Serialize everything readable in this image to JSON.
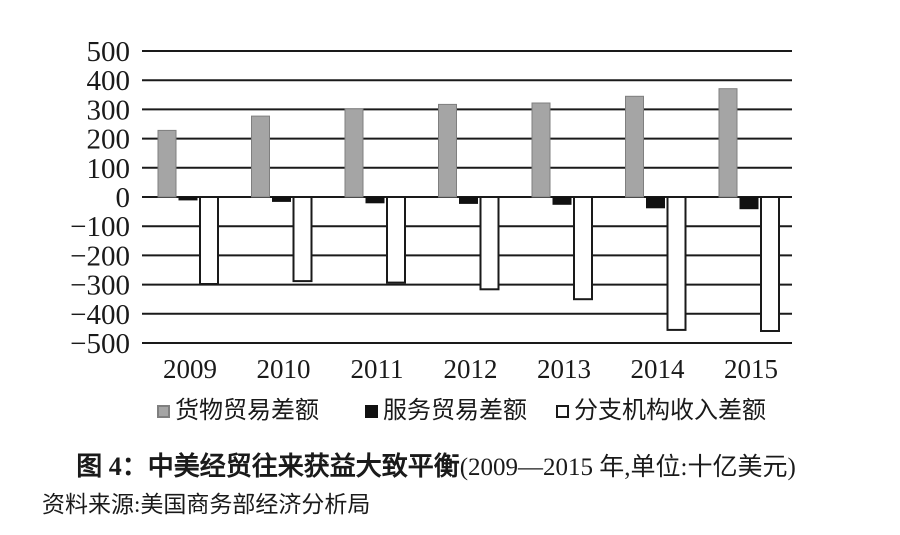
{
  "figure": {
    "caption_bold": "图 4：中美经贸往来获益大致平衡",
    "caption_detail": "(2009—2015 年,单位:十亿美元)",
    "source": "资料来源:美国商务部经济分析局"
  },
  "chart_data": {
    "type": "bar",
    "title": "图 4：中美经贸往来获益大致平衡(2009—2015 年,单位:十亿美元)",
    "source": "资料来源:美国商务部经济分析局",
    "unit": "十亿美元",
    "categories": [
      "2009",
      "2010",
      "2011",
      "2012",
      "2013",
      "2014",
      "2015"
    ],
    "series": [
      {
        "id": "goods",
        "name": "货物贸易差额",
        "color": "#a5a5a5",
        "border": "#7f7f7f",
        "values": [
          228,
          277,
          302,
          317,
          322,
          345,
          371
        ]
      },
      {
        "id": "services",
        "name": "服务贸易差额",
        "color": "#111111",
        "border": "#111111",
        "values": [
          -10,
          -15,
          -20,
          -22,
          -25,
          -37,
          -40
        ]
      },
      {
        "id": "branch",
        "name": "分支机构收入差额",
        "color": "#ffffff",
        "border": "#1a1a1a",
        "values": [
          -298,
          -288,
          -293,
          -316,
          -350,
          -455,
          -459
        ]
      }
    ],
    "ylim": [
      -500,
      500
    ],
    "ytick_step": 100,
    "y_ticks": [
      "500",
      "400",
      "300",
      "200",
      "100",
      "0",
      "−100",
      "−200",
      "−300",
      "−400",
      "−500"
    ],
    "grid": true,
    "legend_position": "bottom",
    "axis_color": "#1a1a1a"
  }
}
